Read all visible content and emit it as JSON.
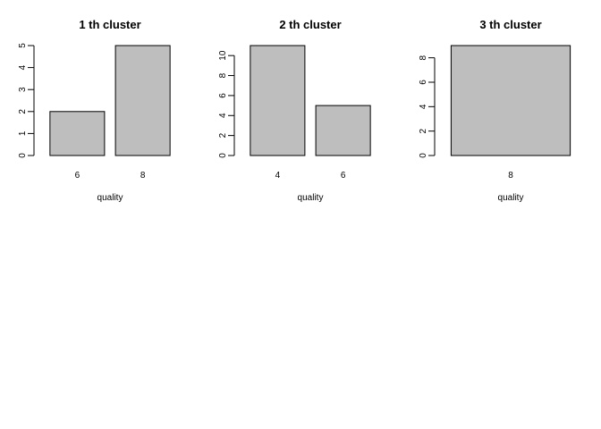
{
  "chart_data": [
    {
      "type": "bar",
      "title": "1 th cluster",
      "xlabel": "quality",
      "ylabel": "",
      "categories": [
        "6",
        "8"
      ],
      "values": [
        2,
        5
      ],
      "ylim": [
        0,
        5
      ],
      "yticks": [
        0,
        1,
        2,
        3,
        4,
        5
      ],
      "bar_color": "#bebebe",
      "grid": false
    },
    {
      "type": "bar",
      "title": "2 th cluster",
      "xlabel": "quality",
      "ylabel": "",
      "categories": [
        "4",
        "6"
      ],
      "values": [
        11,
        5
      ],
      "ylim": [
        0,
        11
      ],
      "yticks": [
        0,
        2,
        4,
        6,
        8,
        10
      ],
      "bar_color": "#bebebe",
      "grid": false
    },
    {
      "type": "bar",
      "title": "3 th cluster",
      "xlabel": "quality",
      "ylabel": "",
      "categories": [
        "8"
      ],
      "values": [
        9
      ],
      "ylim": [
        0,
        9
      ],
      "yticks": [
        0,
        2,
        4,
        6,
        8
      ],
      "bar_color": "#bebebe",
      "grid": false
    }
  ]
}
